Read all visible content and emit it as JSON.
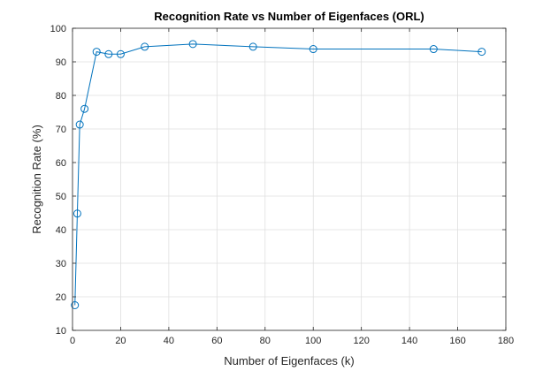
{
  "chart_data": {
    "type": "line",
    "title": "Recognition Rate vs Number of Eigenfaces (ORL)",
    "xlabel": "Number of Eigenfaces (k)",
    "ylabel": "Recognition Rate (%)",
    "xlim": [
      0,
      180
    ],
    "ylim": [
      10,
      100
    ],
    "xticks": [
      0,
      20,
      40,
      60,
      80,
      100,
      120,
      140,
      160,
      180
    ],
    "yticks": [
      10,
      20,
      30,
      40,
      50,
      60,
      70,
      80,
      90,
      100
    ],
    "grid": true,
    "marker": "circle",
    "series": [
      {
        "x": [
          1,
          2,
          3,
          5,
          10,
          15,
          20,
          30,
          50,
          75,
          100,
          150,
          170
        ],
        "y": [
          17.5,
          44.8,
          71.3,
          76.0,
          93.0,
          92.3,
          92.3,
          94.5,
          95.3,
          94.5,
          93.8,
          93.8,
          93.0
        ],
        "color": "#0072BD"
      }
    ]
  }
}
